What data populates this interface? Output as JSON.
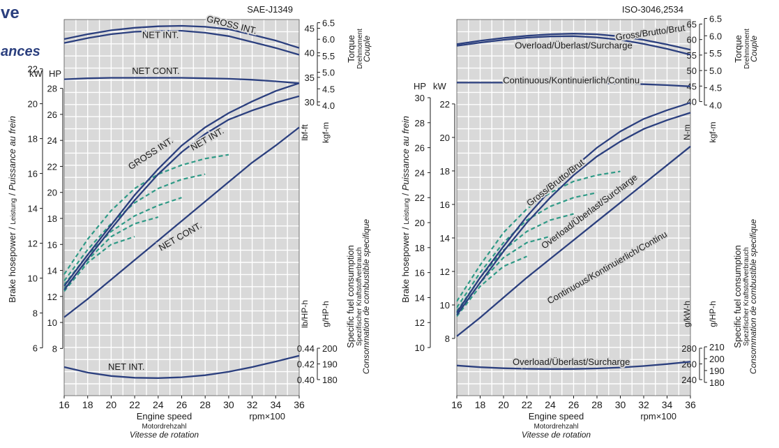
{
  "page": {
    "title_fragment": "ve",
    "subtitle_fragment": "ances"
  },
  "chart_data": [
    {
      "type": "line",
      "standard": "SAE-J1349",
      "x": [
        16,
        18,
        20,
        22,
        24,
        26,
        28,
        30,
        32,
        34,
        36
      ],
      "x_ticks": [
        "16",
        "18",
        "20",
        "22",
        "24",
        "26",
        "28",
        "30",
        "32",
        "34",
        "36"
      ],
      "xlabel": {
        "en": "Engine speed",
        "de": "Motordrehzahl",
        "fr": "Vitesse de rotation",
        "unit": "rpm×100"
      },
      "xlim": [
        16,
        36
      ],
      "ylabel": {
        "prefix": "Brake hosepower / ",
        "de": "Leistung",
        "sep": " / ",
        "fr": "Puissance au frein"
      },
      "power_axis": {
        "unit_kw": "kW",
        "unit_hp": "HP",
        "hp_ticks": [
          8,
          10,
          12,
          14,
          16,
          18,
          20,
          22,
          24,
          26,
          28
        ],
        "kw_ticks": [
          6,
          8,
          10,
          12,
          14,
          16,
          18,
          20,
          22
        ],
        "hp_range": [
          7,
          29
        ]
      },
      "torque_axis": {
        "title_en": "Torque",
        "title_de": "Drehmoment",
        "title_fr": "Couple",
        "unit_primary": "lbf-ft",
        "unit_secondary": "kgf-m",
        "primary_ticks": [
          30,
          35,
          40,
          45
        ],
        "secondary_ticks": [
          4.0,
          4.5,
          5.0,
          5.5,
          6.0,
          6.5
        ],
        "primary_labels": [
          "30",
          "35",
          "40",
          "45"
        ],
        "secondary_labels": [
          "4.0",
          "4.5",
          "5.0",
          "5.5",
          "6.0",
          "6.5"
        ],
        "primary_range": [
          29,
          46.5
        ]
      },
      "fuel_axis": {
        "title_en": "Specific fuel consumption",
        "title_de": "Spezifischer Kraftstoffverbrauch",
        "title_fr": "Consommation de combustible specifique",
        "unit_primary": "lb/HP-h",
        "unit_secondary": "g/HP-h",
        "primary_ticks": [
          0.4,
          0.42,
          0.44
        ],
        "secondary_ticks": [
          180,
          190,
          200
        ],
        "primary_labels": [
          "0.40",
          "0.42",
          "0.44"
        ],
        "secondary_labels": [
          "180",
          "190",
          "200"
        ],
        "secondary_range": [
          176,
          204
        ]
      },
      "series": [
        {
          "name": "GROSS INT.",
          "group": "power",
          "values": [
            12.8,
            15.2,
            17.5,
            19.8,
            21.8,
            23.6,
            25.0,
            26.1,
            27.0,
            27.8,
            28.4
          ]
        },
        {
          "name": "NET INT.",
          "group": "power",
          "values": [
            12.5,
            14.9,
            17.2,
            19.4,
            21.4,
            23.1,
            24.5,
            25.6,
            26.3,
            26.9,
            27.4
          ]
        },
        {
          "name": "NET CONT.",
          "group": "power",
          "values": [
            10.4,
            11.8,
            13.3,
            14.8,
            16.3,
            17.8,
            19.3,
            20.8,
            22.3,
            23.6,
            25.0
          ]
        },
        {
          "name": "GROSS INT.",
          "group": "torque",
          "values": [
            42.8,
            43.8,
            44.6,
            45.1,
            45.4,
            45.5,
            45.3,
            44.8,
            43.7,
            42.5,
            41.0
          ]
        },
        {
          "name": "NET INT.",
          "group": "torque",
          "values": [
            42.0,
            43.0,
            43.8,
            44.3,
            44.5,
            44.5,
            44.1,
            43.4,
            42.2,
            41.0,
            39.6
          ]
        },
        {
          "name": "NET CONT.",
          "group": "torque",
          "values": [
            34.6,
            34.8,
            34.9,
            34.9,
            34.9,
            34.9,
            34.8,
            34.7,
            34.5,
            34.2,
            33.8
          ]
        },
        {
          "name": "NET INT.",
          "group": "fuel",
          "values": [
            188.0,
            184.5,
            182.3,
            181.2,
            181.0,
            181.5,
            182.8,
            185.0,
            188.0,
            191.5,
            195.2
          ]
        }
      ],
      "partial_load": [
        {
          "x": [
            16,
            18,
            20,
            22,
            24,
            26,
            28,
            30
          ],
          "values": [
            13.7,
            16.4,
            18.6,
            20.3,
            21.4,
            22.1,
            22.6,
            22.9
          ]
        },
        {
          "x": [
            16,
            18,
            20,
            22,
            24,
            26,
            28
          ],
          "values": [
            13.2,
            15.6,
            17.6,
            19.2,
            20.3,
            21.0,
            21.4
          ]
        },
        {
          "x": [
            16,
            18,
            20,
            22,
            24,
            26
          ],
          "values": [
            12.9,
            15.2,
            17.0,
            18.2,
            19.0,
            19.6
          ]
        },
        {
          "x": [
            16,
            18,
            20,
            22,
            24
          ],
          "values": [
            12.6,
            14.8,
            16.6,
            17.6,
            18.1
          ]
        },
        {
          "x": [
            16,
            18,
            20,
            22
          ],
          "values": [
            12.4,
            14.6,
            16.0,
            16.6
          ]
        }
      ],
      "curve_labels": [
        {
          "text": "GROSS INT.",
          "x": 30.2,
          "y": 45.1,
          "group": "torque",
          "angle": 14
        },
        {
          "text": "NET INT.",
          "x": 24.2,
          "y": 43.0,
          "group": "torque",
          "angle": 0
        },
        {
          "text": "NET CONT.",
          "x": 23.8,
          "y": 35.7,
          "group": "torque",
          "angle": 0
        },
        {
          "text": "GROSS INT.",
          "x": 23.5,
          "y": 22.8,
          "group": "power",
          "angle": -33
        },
        {
          "text": "NET INT.",
          "x": 28.3,
          "y": 23.9,
          "group": "power",
          "angle": -30
        },
        {
          "text": "NET CONT.",
          "x": 26.0,
          "y": 16.4,
          "group": "power",
          "angle": -30
        },
        {
          "text": "NET INT.",
          "x": 21.3,
          "y": 186.2,
          "group": "fuel",
          "angle": 0
        }
      ],
      "grid": true
    },
    {
      "type": "line",
      "standard": "ISO-3046,2534",
      "x": [
        16,
        18,
        20,
        22,
        24,
        26,
        28,
        30,
        32,
        34,
        36
      ],
      "x_ticks": [
        "16",
        "18",
        "20",
        "22",
        "24",
        "26",
        "28",
        "30",
        "32",
        "34",
        "36"
      ],
      "xlabel": {
        "en": "Engine speed",
        "de": "Motordrehzahl",
        "fr": "Vitesse de rotation",
        "unit": "rpm×100"
      },
      "xlim": [
        16,
        36
      ],
      "ylabel": {
        "prefix": "Brake hosepower / ",
        "de": "Leistung",
        "sep": " / ",
        "fr": "Puissance au frein"
      },
      "power_axis": {
        "unit_kw": "kW",
        "unit_hp": "HP",
        "hp_ticks": [
          10,
          12,
          14,
          16,
          18,
          20,
          22,
          24,
          26,
          28,
          30
        ],
        "kw_ticks": [
          8,
          10,
          12,
          14,
          16,
          18,
          20,
          22
        ],
        "hp_range": [
          9.5,
          30
        ]
      },
      "torque_axis": {
        "title_en": "Torque",
        "title_de": "Drehmoment",
        "title_fr": "Couple",
        "unit_primary": "N-m",
        "unit_secondary": "kgf-m",
        "primary_ticks": [
          40,
          45,
          50,
          55,
          60,
          65
        ],
        "secondary_ticks": [
          4.0,
          4.5,
          5.0,
          5.5,
          6.0,
          6.5
        ],
        "primary_labels": [
          "40",
          "45",
          "50",
          "55",
          "60",
          "65"
        ],
        "secondary_labels": [
          "4.0",
          "4.5",
          "5.0",
          "5.5",
          "6.0",
          "6.5"
        ],
        "primary_range": [
          39,
          66
        ]
      },
      "fuel_axis": {
        "title_en": "Specific fuel consumption",
        "title_de": "Spezifischer Kraftstoffverbrauch",
        "title_fr": "Consommation de combustible specifique",
        "unit_primary": "g/kW-h",
        "unit_secondary": "g/HP-h",
        "primary_ticks": [
          240,
          260,
          280
        ],
        "secondary_ticks": [
          180,
          190,
          200,
          210
        ],
        "primary_labels": [
          "240",
          "260",
          "280"
        ],
        "secondary_labels": [
          "180",
          "190",
          "200",
          "210"
        ],
        "primary_range": [
          232,
          288
        ]
      },
      "series": [
        {
          "name": "Gross/Brutto/Brut",
          "group": "power",
          "values": [
            12.8,
            15.6,
            18.1,
            20.5,
            22.6,
            24.4,
            26.0,
            27.3,
            28.3,
            29.0,
            29.6
          ]
        },
        {
          "name": "Overload/Überlast/Surcharge",
          "group": "power",
          "values": [
            12.6,
            15.2,
            17.7,
            20.0,
            22.0,
            23.8,
            25.3,
            26.5,
            27.5,
            28.2,
            28.8
          ]
        },
        {
          "name": "Continuous/Kontinuierlich/Continu",
          "group": "power",
          "values": [
            10.9,
            12.4,
            14.0,
            15.6,
            17.1,
            18.6,
            20.1,
            21.6,
            23.1,
            24.6,
            26.1
          ]
        },
        {
          "name": "Gross/Brutto/Brut",
          "group": "torque",
          "values": [
            58.5,
            59.6,
            60.5,
            61.2,
            61.7,
            61.9,
            61.7,
            61.0,
            59.9,
            58.4,
            56.7
          ]
        },
        {
          "name": "Overload/Überlast/Surcharge",
          "group": "torque",
          "values": [
            58.0,
            59.0,
            59.9,
            60.6,
            61.0,
            61.1,
            60.7,
            59.9,
            58.6,
            57.0,
            55.1
          ]
        },
        {
          "name": "Continuous/Kontinuierlich/Continu",
          "group": "torque",
          "values": [
            46.1,
            46.1,
            46.1,
            46.1,
            46.1,
            46.0,
            45.9,
            45.8,
            45.6,
            45.3,
            44.9
          ]
        },
        {
          "name": "Overload/Überlast/Surcharge",
          "group": "fuel",
          "values": [
            258.0,
            255.8,
            254.5,
            253.8,
            253.5,
            253.6,
            254.2,
            255.5,
            257.3,
            259.8,
            262.8
          ]
        }
      ],
      "partial_load": [
        {
          "x": [
            16,
            18,
            20,
            22,
            24,
            26,
            28,
            30
          ],
          "values": [
            13.7,
            16.6,
            19.2,
            21.1,
            22.4,
            23.3,
            23.8,
            24.1
          ]
        },
        {
          "x": [
            16,
            18,
            20,
            22,
            24,
            26,
            28
          ],
          "values": [
            13.2,
            16.0,
            18.4,
            20.2,
            21.3,
            22.0,
            22.4
          ]
        },
        {
          "x": [
            16,
            18,
            20,
            22,
            24,
            26
          ],
          "values": [
            12.9,
            15.6,
            17.8,
            19.3,
            20.2,
            20.7
          ]
        },
        {
          "x": [
            16,
            18,
            20,
            22,
            24
          ],
          "values": [
            12.7,
            15.2,
            17.2,
            18.4,
            18.9
          ]
        },
        {
          "x": [
            16,
            18,
            20,
            22
          ],
          "values": [
            12.5,
            14.9,
            16.5,
            17.3
          ]
        }
      ],
      "curve_labels": [
        {
          "text": "Gross/Brutto/Brut",
          "x": 32.6,
          "y": 61.3,
          "group": "torque",
          "angle": -8
        },
        {
          "text": "Overload/Überlast/Surcharge",
          "x": 26.0,
          "y": 57.1,
          "group": "torque",
          "angle": 0
        },
        {
          "text": "Continuous/Kontinuierlich/Continu",
          "x": 25.8,
          "y": 45.9,
          "group": "torque",
          "angle": 0
        },
        {
          "text": "Gross/Brutto/Brut",
          "x": 24.6,
          "y": 23.0,
          "group": "power",
          "angle": -38
        },
        {
          "text": "Overload/Überlast/Surcharge",
          "x": 27.5,
          "y": 20.7,
          "group": "power",
          "angle": -37
        },
        {
          "text": "Continuous/Kontinuierlich/Continu",
          "x": 29.0,
          "y": 16.2,
          "group": "power",
          "angle": -30
        },
        {
          "text": "Overload/Überlast/Surcharge",
          "x": 25.8,
          "y": 258.8,
          "group": "fuel",
          "angle": 0
        }
      ],
      "grid": true
    }
  ]
}
